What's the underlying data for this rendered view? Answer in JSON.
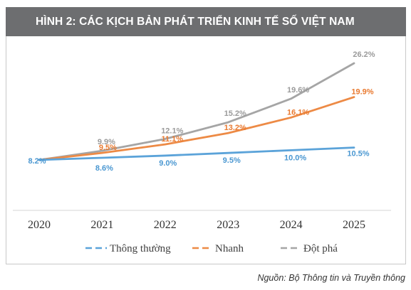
{
  "title": "HÌNH 2: CÁC KỊCH BẢN PHÁT TRIỂN KINH TẾ SỐ VIỆT NAM",
  "source": "Nguồn: Bộ Thông tin và Truyền thông",
  "colors": {
    "title_bg": "#6d6e70",
    "thong_thuong": "#5ba3d9",
    "nhanh": "#ed8a45",
    "dot_pha": "#a5a5a5"
  },
  "chart_data": {
    "type": "line",
    "title": "",
    "xlabel": "",
    "ylabel": "",
    "categories": [
      "2020",
      "2021",
      "2022",
      "2023",
      "2024",
      "2025"
    ],
    "ylim": [
      0,
      30
    ],
    "grid": false,
    "legend_position": "bottom",
    "series": [
      {
        "name": "Thông thường",
        "values": [
          8.2,
          8.6,
          9.0,
          9.5,
          10.0,
          10.5
        ],
        "labels": [
          "8.2%",
          "8.6%",
          "9.0%",
          "9.5%",
          "10.0%",
          "10.5%"
        ]
      },
      {
        "name": "Nhanh",
        "values": [
          8.2,
          9.5,
          11.1,
          13.2,
          16.1,
          19.9
        ],
        "labels": [
          "",
          "9.5%",
          "11.1%",
          "13.2%",
          "16.1%",
          "19.9%"
        ]
      },
      {
        "name": "Đột phá",
        "values": [
          8.2,
          9.9,
          12.1,
          15.2,
          19.6,
          26.2
        ],
        "labels": [
          "",
          "9.9%",
          "12.1%",
          "15.2%",
          "19.6%",
          "26.2%"
        ]
      }
    ]
  }
}
